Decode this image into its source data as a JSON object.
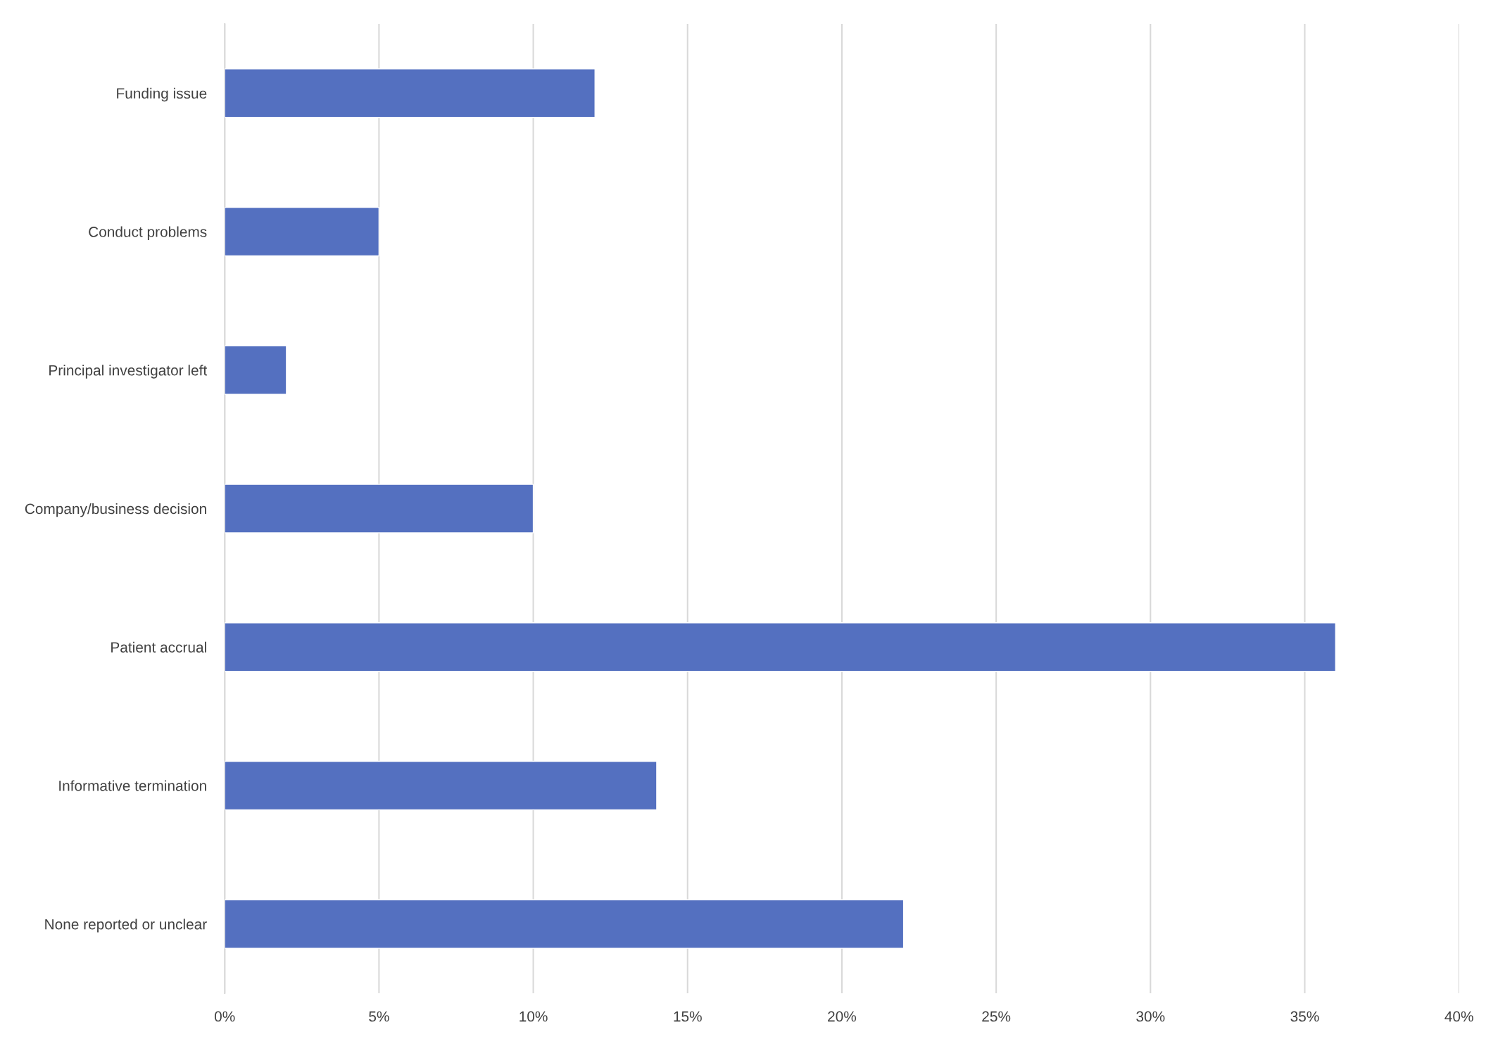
{
  "chart_data": {
    "type": "bar",
    "orientation": "horizontal",
    "categories": [
      "Funding issue",
      "Conduct problems",
      "Principal investigator left",
      "Company/business decision",
      "Patient accrual",
      "Informative termination",
      "None reported or unclear"
    ],
    "values": [
      12,
      5,
      2,
      10,
      36,
      14,
      22
    ],
    "color": "#5470c0",
    "xlim": [
      0,
      40
    ],
    "xticks": [
      {
        "value": 0,
        "label": "0%"
      },
      {
        "value": 5,
        "label": "5%"
      },
      {
        "value": 10,
        "label": "10%"
      },
      {
        "value": 15,
        "label": "15%"
      },
      {
        "value": 20,
        "label": "20%"
      },
      {
        "value": 25,
        "label": "25%"
      },
      {
        "value": 30,
        "label": "30%"
      },
      {
        "value": 35,
        "label": "35%"
      },
      {
        "value": 40,
        "label": "40%"
      }
    ],
    "grid": "x",
    "legend": false
  }
}
